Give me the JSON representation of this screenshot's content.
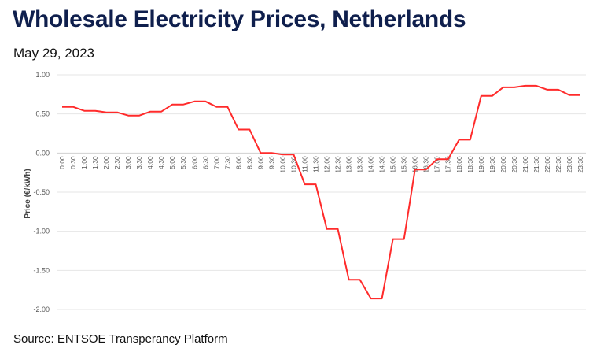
{
  "title": "Wholesale Electricity Prices, Netherlands",
  "subtitle": "May 29, 2023",
  "source": "Source: ENTSOE Transperancy Platform",
  "chart_data": {
    "type": "line",
    "title": "Wholesale Electricity Prices, Netherlands",
    "subtitle": "May 29, 2023",
    "xlabel": "",
    "ylabel": "Price (€/kWh)",
    "ylim": [
      -2.0,
      1.0
    ],
    "yticks": [
      1.0,
      0.5,
      0.0,
      -0.5,
      -1.0,
      -1.5,
      -2.0
    ],
    "ytick_labels": [
      "1.00",
      "0.50",
      "0.00",
      "-0.50",
      "-1.00",
      "-1.50",
      "-2.00"
    ],
    "grid": true,
    "legend": "none",
    "line_color": "#ff2b2b",
    "x": [
      "0:00",
      "0:30",
      "1:00",
      "1:30",
      "2:00",
      "2:30",
      "3:00",
      "3:30",
      "4:00",
      "4:30",
      "5:00",
      "5:30",
      "6:00",
      "6:30",
      "7:00",
      "7:30",
      "8:00",
      "8:30",
      "9:00",
      "9:30",
      "10:00",
      "10:30",
      "11:00",
      "11:30",
      "12:00",
      "12:30",
      "13:00",
      "13:30",
      "14:00",
      "14:30",
      "15:00",
      "15:30",
      "16:00",
      "16:30",
      "17:00",
      "17:30",
      "18:00",
      "18:30",
      "19:00",
      "19:30",
      "20:00",
      "20:30",
      "21:00",
      "21:30",
      "22:00",
      "22:30",
      "23:00",
      "23:30"
    ],
    "series": [
      {
        "values": [
          0.59,
          0.59,
          0.54,
          0.54,
          0.52,
          0.52,
          0.48,
          0.48,
          0.53,
          0.53,
          0.62,
          0.62,
          0.66,
          0.66,
          0.59,
          0.59,
          0.3,
          0.3,
          0.0,
          0.0,
          -0.02,
          -0.02,
          -0.4,
          -0.4,
          -0.97,
          -0.97,
          -1.62,
          -1.62,
          -1.86,
          -1.86,
          -1.1,
          -1.1,
          -0.21,
          -0.21,
          -0.08,
          -0.08,
          0.17,
          0.17,
          0.73,
          0.73,
          0.84,
          0.84,
          0.86,
          0.86,
          0.81,
          0.81,
          0.74,
          0.74
        ]
      }
    ]
  }
}
